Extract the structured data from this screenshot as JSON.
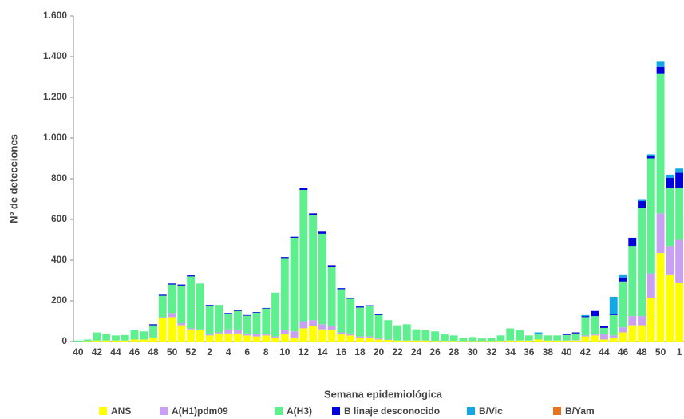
{
  "chart_data": {
    "type": "stacked_bar",
    "x_label": "Semana epidemiológica",
    "y_label": "Nº de detecciones",
    "categories": [
      "40",
      null,
      "42",
      null,
      "44",
      null,
      "46",
      null,
      "48",
      null,
      "50",
      null,
      "52",
      null,
      "2",
      null,
      "4",
      null,
      "6",
      null,
      "8",
      null,
      "10",
      null,
      "12",
      null,
      "14",
      null,
      "16",
      null,
      "18",
      null,
      "20",
      null,
      "22",
      null,
      "24",
      null,
      "26",
      null,
      "28",
      null,
      "30",
      null,
      "32",
      null,
      "34",
      null,
      "36",
      null,
      "38",
      null,
      "40",
      null,
      "42",
      null,
      "44",
      null,
      "46",
      null,
      "48",
      null,
      "50",
      null,
      "1"
    ],
    "series": [
      {
        "name": "ANS",
        "color": "#ffff00",
        "values": [
          0,
          2,
          5,
          5,
          5,
          5,
          10,
          10,
          20,
          115,
          120,
          80,
          60,
          55,
          30,
          40,
          40,
          40,
          30,
          25,
          30,
          20,
          35,
          20,
          65,
          75,
          60,
          55,
          35,
          30,
          20,
          20,
          10,
          8,
          5,
          5,
          5,
          5,
          3,
          3,
          3,
          2,
          2,
          2,
          2,
          3,
          5,
          5,
          5,
          10,
          5,
          5,
          5,
          5,
          25,
          30,
          10,
          20,
          45,
          80,
          80,
          215,
          435,
          330,
          290
        ]
      },
      {
        "name": "A(H1)pdm09",
        "color": "#c9a0f2",
        "values": [
          0,
          0,
          0,
          0,
          0,
          0,
          0,
          0,
          0,
          5,
          20,
          10,
          5,
          5,
          5,
          5,
          20,
          15,
          10,
          10,
          5,
          5,
          20,
          30,
          35,
          30,
          25,
          20,
          10,
          10,
          5,
          5,
          5,
          2,
          0,
          0,
          0,
          0,
          0,
          0,
          0,
          0,
          0,
          0,
          0,
          0,
          0,
          0,
          0,
          0,
          0,
          0,
          0,
          2,
          5,
          5,
          25,
          10,
          25,
          45,
          45,
          120,
          195,
          140,
          210
        ]
      },
      {
        "name": "A(H3)",
        "color": "#5ef08e",
        "values": [
          5,
          8,
          40,
          33,
          25,
          27,
          45,
          40,
          60,
          105,
          140,
          185,
          255,
          225,
          142,
          135,
          77,
          95,
          87,
          107,
          127,
          215,
          355,
          460,
          645,
          515,
          445,
          290,
          212,
          170,
          142,
          148,
          115,
          95,
          75,
          80,
          55,
          53,
          47,
          32,
          27,
          16,
          20,
          13,
          16,
          27,
          60,
          50,
          25,
          25,
          25,
          25,
          27,
          33,
          90,
          90,
          32,
          100,
          225,
          345,
          530,
          565,
          685,
          285,
          255
        ]
      },
      {
        "name": "B linaje desconocido",
        "color": "#0000dd",
        "values": [
          0,
          0,
          0,
          0,
          0,
          0,
          0,
          0,
          5,
          5,
          5,
          5,
          5,
          0,
          3,
          0,
          3,
          5,
          3,
          3,
          3,
          0,
          5,
          5,
          10,
          10,
          10,
          10,
          5,
          5,
          5,
          5,
          5,
          0,
          0,
          0,
          0,
          0,
          0,
          0,
          0,
          0,
          0,
          0,
          0,
          0,
          0,
          0,
          0,
          0,
          0,
          0,
          3,
          5,
          5,
          25,
          8,
          5,
          20,
          40,
          35,
          10,
          35,
          50,
          75
        ]
      },
      {
        "name": "B/Vic",
        "color": "#12a8e6",
        "values": [
          0,
          0,
          0,
          0,
          0,
          0,
          0,
          0,
          0,
          0,
          0,
          0,
          0,
          0,
          0,
          0,
          0,
          0,
          0,
          0,
          0,
          0,
          0,
          0,
          0,
          0,
          0,
          0,
          0,
          0,
          0,
          0,
          0,
          0,
          0,
          0,
          0,
          0,
          0,
          0,
          0,
          0,
          0,
          0,
          0,
          0,
          0,
          0,
          0,
          10,
          0,
          0,
          0,
          0,
          5,
          0,
          0,
          85,
          15,
          0,
          10,
          10,
          25,
          15,
          20
        ]
      },
      {
        "name": "B/Yam",
        "color": "#e8731c",
        "values": [
          0,
          0,
          0,
          0,
          0,
          0,
          0,
          0,
          0,
          0,
          0,
          0,
          0,
          0,
          0,
          0,
          0,
          0,
          0,
          0,
          0,
          0,
          0,
          0,
          0,
          0,
          0,
          0,
          0,
          0,
          0,
          0,
          0,
          0,
          0,
          0,
          0,
          0,
          0,
          0,
          0,
          0,
          0,
          0,
          0,
          0,
          0,
          0,
          0,
          0,
          0,
          0,
          0,
          0,
          0,
          0,
          0,
          0,
          0,
          0,
          0,
          0,
          0,
          0,
          0
        ]
      }
    ],
    "ylim": [
      0,
      1600
    ],
    "yticks": [
      0,
      200,
      400,
      600,
      800,
      {
        "value": 1000,
        "label": "1.000"
      },
      {
        "value": 1200,
        "label": "1.200"
      },
      {
        "value": 1400,
        "label": "1.400"
      },
      {
        "value": 1600,
        "label": "1.600"
      }
    ],
    "grid": false
  }
}
